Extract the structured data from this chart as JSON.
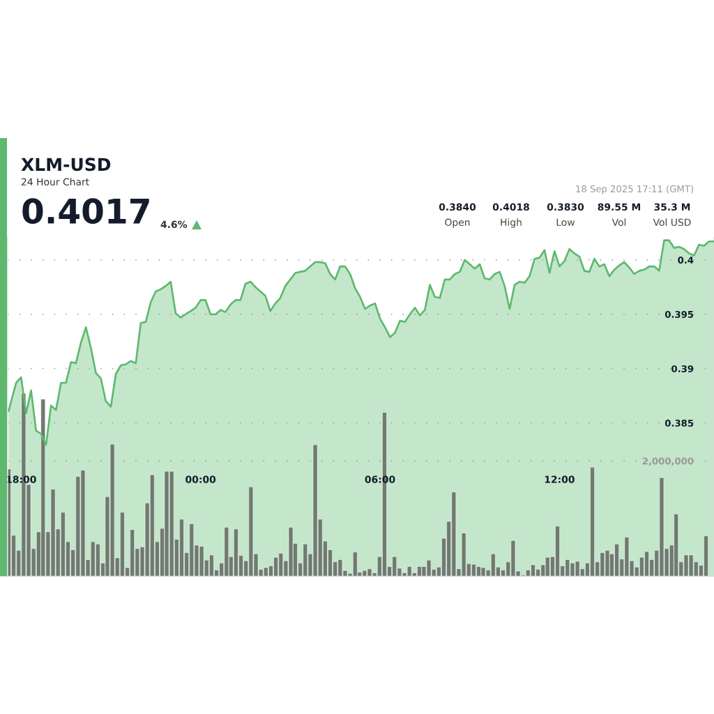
{
  "chart_data": {
    "type": "area",
    "title": "XLM-USD",
    "subtitle": "24 Hour Chart",
    "annotations": [
      "0.4017",
      "4.6%",
      "18 Sep 2025 17:11 (GMT)",
      "0.3840",
      "Open",
      "0.4018",
      "High",
      "0.3830",
      "Low",
      "89.55 M",
      "Vol",
      "35.3 M",
      "Vol USD"
    ],
    "xlim": [
      "2025-09-17T17:33",
      "2025-09-18T17:10"
    ],
    "xticks": [
      {
        "value": "2025-09-17T18:00",
        "label": "18:00"
      },
      {
        "value": "2025-09-18T00:00",
        "label": "00:00"
      },
      {
        "value": "2025-09-18T06:00",
        "label": "06:00"
      },
      {
        "value": "2025-09-18T12:00",
        "label": "12:00"
      }
    ],
    "ylim": [
      0.3709,
      0.4021
    ],
    "yticks": [
      0.385,
      0.39,
      0.395,
      0.4
    ],
    "y2lim": [
      0,
      5880000
    ],
    "y2ticks": [
      {
        "value": 2000000,
        "label": "2,000,000"
      }
    ],
    "grid": "y",
    "series": [
      {
        "color": "#5cb96e",
        "x": [
          "2025-09-17T17:35",
          "2025-09-17T17:40",
          "2025-09-17T17:50",
          "2025-09-17T18:00",
          "2025-09-17T18:10",
          "2025-09-17T18:20",
          "2025-09-17T18:30",
          "2025-09-17T18:40",
          "2025-09-17T18:50",
          "2025-09-17T19:00",
          "2025-09-17T19:10",
          "2025-09-17T19:20",
          "2025-09-17T19:30",
          "2025-09-17T19:40",
          "2025-09-17T19:50",
          "2025-09-17T20:00",
          "2025-09-17T20:10",
          "2025-09-17T20:20",
          "2025-09-17T20:30",
          "2025-09-17T20:40",
          "2025-09-17T20:50",
          "2025-09-17T21:00",
          "2025-09-17T21:10",
          "2025-09-17T21:20",
          "2025-09-17T21:30",
          "2025-09-17T21:40",
          "2025-09-17T21:50",
          "2025-09-17T22:00",
          "2025-09-17T22:10",
          "2025-09-17T22:20",
          "2025-09-17T22:30",
          "2025-09-17T22:40",
          "2025-09-17T22:50",
          "2025-09-17T23:00",
          "2025-09-17T23:10",
          "2025-09-17T23:20",
          "2025-09-17T23:30",
          "2025-09-17T23:40",
          "2025-09-17T23:50",
          "2025-09-18T00:00",
          "2025-09-18T00:10",
          "2025-09-18T00:20",
          "2025-09-18T00:30",
          "2025-09-18T00:40",
          "2025-09-18T00:50",
          "2025-09-18T01:00",
          "2025-09-18T01:10",
          "2025-09-18T01:20",
          "2025-09-18T01:30",
          "2025-09-18T01:40",
          "2025-09-18T01:50",
          "2025-09-18T02:00",
          "2025-09-18T02:10",
          "2025-09-18T02:20",
          "2025-09-18T02:30",
          "2025-09-18T02:40",
          "2025-09-18T02:50",
          "2025-09-18T03:00",
          "2025-09-18T03:10",
          "2025-09-18T03:20",
          "2025-09-18T03:30",
          "2025-09-18T03:40",
          "2025-09-18T03:50",
          "2025-09-18T04:00",
          "2025-09-18T04:10",
          "2025-09-18T04:20",
          "2025-09-18T04:30",
          "2025-09-18T04:40",
          "2025-09-18T04:50",
          "2025-09-18T05:00",
          "2025-09-18T05:10",
          "2025-09-18T05:20",
          "2025-09-18T05:30",
          "2025-09-18T05:40",
          "2025-09-18T05:50",
          "2025-09-18T06:00",
          "2025-09-18T06:10",
          "2025-09-18T06:20",
          "2025-09-18T06:30",
          "2025-09-18T06:40",
          "2025-09-18T06:50",
          "2025-09-18T07:00",
          "2025-09-18T07:10",
          "2025-09-18T07:20",
          "2025-09-18T07:30",
          "2025-09-18T07:40",
          "2025-09-18T07:50",
          "2025-09-18T08:00",
          "2025-09-18T08:10",
          "2025-09-18T08:20",
          "2025-09-18T08:30",
          "2025-09-18T08:40",
          "2025-09-18T08:50",
          "2025-09-18T09:00",
          "2025-09-18T09:10",
          "2025-09-18T09:20",
          "2025-09-18T09:30",
          "2025-09-18T09:40",
          "2025-09-18T09:50",
          "2025-09-18T10:00",
          "2025-09-18T10:10",
          "2025-09-18T10:20",
          "2025-09-18T10:30",
          "2025-09-18T10:40",
          "2025-09-18T10:50",
          "2025-09-18T11:00",
          "2025-09-18T11:10",
          "2025-09-18T11:20",
          "2025-09-18T11:30",
          "2025-09-18T11:40",
          "2025-09-18T11:50",
          "2025-09-18T12:00",
          "2025-09-18T12:10",
          "2025-09-18T12:20",
          "2025-09-18T12:30",
          "2025-09-18T12:40",
          "2025-09-18T12:50",
          "2025-09-18T13:00",
          "2025-09-18T13:10",
          "2025-09-18T13:20",
          "2025-09-18T13:30",
          "2025-09-18T13:40",
          "2025-09-18T13:50",
          "2025-09-18T14:00",
          "2025-09-18T14:10",
          "2025-09-18T14:20",
          "2025-09-18T14:30",
          "2025-09-18T14:40",
          "2025-09-18T14:50",
          "2025-09-18T15:00",
          "2025-09-18T15:10",
          "2025-09-18T15:20",
          "2025-09-18T15:30",
          "2025-09-18T15:40",
          "2025-09-18T15:50",
          "2025-09-18T16:00",
          "2025-09-18T16:10",
          "2025-09-18T16:20",
          "2025-09-18T16:30",
          "2025-09-18T16:40",
          "2025-09-18T16:50",
          "2025-09-18T17:00",
          "2025-09-18T17:10"
        ],
        "values": [
          0.3861,
          0.387,
          0.3887,
          0.3892,
          0.3859,
          0.388,
          0.3843,
          0.384,
          0.383,
          0.3866,
          0.3862,
          0.3887,
          0.3887,
          0.3906,
          0.3905,
          0.3924,
          0.3938,
          0.3919,
          0.3896,
          0.3891,
          0.387,
          0.3865,
          0.3895,
          0.3903,
          0.3904,
          0.3907,
          0.3905,
          0.3942,
          0.3943,
          0.3961,
          0.3971,
          0.3973,
          0.3976,
          0.398,
          0.3951,
          0.3947,
          0.395,
          0.3953,
          0.3956,
          0.3963,
          0.3963,
          0.395,
          0.395,
          0.3954,
          0.3952,
          0.3959,
          0.3963,
          0.3963,
          0.3978,
          0.398,
          0.3975,
          0.3971,
          0.3967,
          0.3953,
          0.396,
          0.3965,
          0.3976,
          0.3982,
          0.3988,
          0.3989,
          0.399,
          0.3994,
          0.3998,
          0.3998,
          0.3997,
          0.3987,
          0.3982,
          0.3994,
          0.3994,
          0.3987,
          0.3974,
          0.3966,
          0.3955,
          0.3958,
          0.396,
          0.3946,
          0.3938,
          0.3929,
          0.3933,
          0.3944,
          0.3943,
          0.395,
          0.3956,
          0.3949,
          0.3954,
          0.3977,
          0.3966,
          0.3965,
          0.3982,
          0.3982,
          0.3987,
          0.3989,
          0.4,
          0.3996,
          0.3992,
          0.3996,
          0.3983,
          0.3982,
          0.3987,
          0.3989,
          0.3976,
          0.3955,
          0.3977,
          0.398,
          0.3979,
          0.3985,
          0.4001,
          0.4002,
          0.4009,
          0.3988,
          0.4008,
          0.3994,
          0.3999,
          0.401,
          0.4006,
          0.4003,
          0.399,
          0.3989,
          0.4001,
          0.3994,
          0.3996,
          0.3985,
          0.3991,
          0.3995,
          0.3998,
          0.3993,
          0.3987,
          0.399,
          0.3991,
          0.3994,
          0.3994,
          0.399,
          0.4018,
          0.4018,
          0.4011,
          0.4012,
          0.401,
          0.4006,
          0.4004,
          0.4014,
          0.4013,
          0.4017,
          0.4017
        ]
      },
      {
        "type": "bar",
        "axis": "y2",
        "color": "#6f7a70",
        "x": [
          "2025-09-17T17:35",
          "2025-09-17T17:45",
          "2025-09-17T17:55",
          "2025-09-17T18:05",
          "2025-09-17T18:15",
          "2025-09-17T18:25",
          "2025-09-17T18:35",
          "2025-09-17T18:44",
          "2025-09-17T18:54",
          "2025-09-17T19:04",
          "2025-09-17T19:14",
          "2025-09-17T19:24",
          "2025-09-17T19:34",
          "2025-09-17T19:44",
          "2025-09-17T19:54",
          "2025-09-17T20:04",
          "2025-09-17T20:14",
          "2025-09-17T20:24",
          "2025-09-17T20:34",
          "2025-09-17T20:44",
          "2025-09-17T20:53",
          "2025-09-17T21:03",
          "2025-09-17T21:13",
          "2025-09-17T21:23",
          "2025-09-17T21:33",
          "2025-09-17T21:43",
          "2025-09-17T21:53",
          "2025-09-17T22:03",
          "2025-09-17T22:13",
          "2025-09-17T22:23",
          "2025-09-17T22:33",
          "2025-09-17T22:43",
          "2025-09-17T22:52",
          "2025-09-17T23:02",
          "2025-09-17T23:12",
          "2025-09-17T23:22",
          "2025-09-17T23:32",
          "2025-09-17T23:42",
          "2025-09-17T23:52",
          "2025-09-18T00:02",
          "2025-09-18T00:12",
          "2025-09-18T00:22",
          "2025-09-18T00:32",
          "2025-09-18T00:42",
          "2025-09-18T00:52",
          "2025-09-18T01:01",
          "2025-09-18T01:11",
          "2025-09-18T01:21",
          "2025-09-18T01:31",
          "2025-09-18T01:41",
          "2025-09-18T01:51",
          "2025-09-18T02:01",
          "2025-09-18T02:11",
          "2025-09-18T02:21",
          "2025-09-18T02:31",
          "2025-09-18T02:41",
          "2025-09-18T02:51",
          "2025-09-18T03:01",
          "2025-09-18T03:10",
          "2025-09-18T03:20",
          "2025-09-18T03:30",
          "2025-09-18T03:40",
          "2025-09-18T03:50",
          "2025-09-18T04:00",
          "2025-09-18T04:10",
          "2025-09-18T04:20",
          "2025-09-18T04:30",
          "2025-09-18T04:40",
          "2025-09-18T04:50",
          "2025-09-18T05:00",
          "2025-09-18T05:10",
          "2025-09-18T05:19",
          "2025-09-18T05:29",
          "2025-09-18T05:39",
          "2025-09-18T05:49",
          "2025-09-18T05:59",
          "2025-09-18T06:09",
          "2025-09-18T06:19",
          "2025-09-18T06:29",
          "2025-09-18T06:39",
          "2025-09-18T06:49",
          "2025-09-18T06:59",
          "2025-09-18T07:09",
          "2025-09-18T07:19",
          "2025-09-18T07:28",
          "2025-09-18T07:38",
          "2025-09-18T07:48",
          "2025-09-18T07:58",
          "2025-09-18T08:08",
          "2025-09-18T08:18",
          "2025-09-18T08:28",
          "2025-09-18T08:38",
          "2025-09-18T08:48",
          "2025-09-18T08:58",
          "2025-09-18T09:08",
          "2025-09-18T09:18",
          "2025-09-18T09:27",
          "2025-09-18T09:37",
          "2025-09-18T09:47",
          "2025-09-18T09:57",
          "2025-09-18T10:07",
          "2025-09-18T10:17",
          "2025-09-18T10:27",
          "2025-09-18T10:37",
          "2025-09-18T10:47",
          "2025-09-18T10:57",
          "2025-09-18T11:07",
          "2025-09-18T11:17",
          "2025-09-18T11:27",
          "2025-09-18T11:36",
          "2025-09-18T11:46",
          "2025-09-18T11:56",
          "2025-09-18T12:06",
          "2025-09-18T12:16",
          "2025-09-18T12:26",
          "2025-09-18T12:36",
          "2025-09-18T12:46",
          "2025-09-18T12:56",
          "2025-09-18T13:06",
          "2025-09-18T13:16",
          "2025-09-18T13:26",
          "2025-09-18T13:36",
          "2025-09-18T13:45",
          "2025-09-18T13:55",
          "2025-09-18T14:05",
          "2025-09-18T14:15",
          "2025-09-18T14:25",
          "2025-09-18T14:35",
          "2025-09-18T14:45",
          "2025-09-18T14:55",
          "2025-09-18T15:05",
          "2025-09-18T15:15",
          "2025-09-18T15:25",
          "2025-09-18T15:35",
          "2025-09-18T15:45",
          "2025-09-18T15:54",
          "2025-09-18T16:04",
          "2025-09-18T16:14",
          "2025-09-18T16:24",
          "2025-09-18T16:34",
          "2025-09-18T16:44",
          "2025-09-18T16:54"
        ],
        "values": [
          1860000,
          710000,
          450000,
          3170000,
          1590000,
          480000,
          770000,
          3070000,
          770000,
          1510000,
          820000,
          1110000,
          600000,
          460000,
          1730000,
          1840000,
          290000,
          600000,
          560000,
          230000,
          1380000,
          2290000,
          320000,
          1110000,
          150000,
          810000,
          480000,
          510000,
          1270000,
          1760000,
          600000,
          830000,
          1820000,
          1820000,
          640000,
          990000,
          410000,
          910000,
          540000,
          520000,
          280000,
          370000,
          110000,
          230000,
          850000,
          340000,
          820000,
          360000,
          270000,
          1550000,
          390000,
          120000,
          150000,
          180000,
          330000,
          400000,
          270000,
          850000,
          570000,
          230000,
          560000,
          390000,
          2280000,
          990000,
          610000,
          460000,
          250000,
          290000,
          100000,
          50000,
          420000,
          70000,
          100000,
          130000,
          60000,
          340000,
          2840000,
          170000,
          340000,
          140000,
          60000,
          170000,
          60000,
          170000,
          170000,
          280000,
          120000,
          160000,
          660000,
          950000,
          1460000,
          130000,
          750000,
          220000,
          210000,
          170000,
          150000,
          110000,
          390000,
          160000,
          110000,
          250000,
          620000,
          90000,
          20000,
          110000,
          200000,
          120000,
          200000,
          330000,
          340000,
          870000,
          180000,
          290000,
          230000,
          260000,
          130000,
          230000,
          1890000,
          250000,
          410000,
          450000,
          390000,
          560000,
          300000,
          680000,
          270000,
          160000,
          330000,
          430000,
          290000,
          450000,
          1710000,
          480000,
          540000,
          1080000,
          250000,
          370000,
          370000,
          250000,
          190000,
          700000
        ]
      }
    ]
  }
}
